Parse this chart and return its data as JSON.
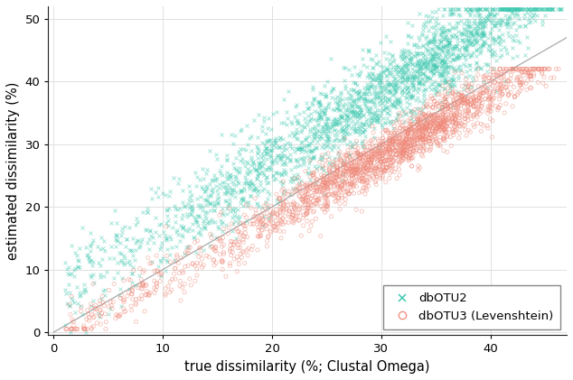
{
  "title": "",
  "xlabel": "true dissimilarity (%; Clustal Omega)",
  "ylabel": "estimated dissimilarity (%)",
  "xlim": [
    -0.5,
    47
  ],
  "ylim": [
    -0.5,
    52
  ],
  "xticks": [
    0,
    10,
    20,
    30,
    40
  ],
  "yticks": [
    0,
    10,
    20,
    30,
    40,
    50
  ],
  "dbotu2_color": "#3EC9B0",
  "dbotu3_color": "#F08878",
  "ref_line_color": "#AAAAAA",
  "grid_color": "#E0E0E0",
  "background_color": "#FFFFFF",
  "legend_labels": [
    "dbOTU2",
    "dbOTU3 (Levenshtein)"
  ],
  "seed": 123,
  "xlabel_fontsize": 10.5,
  "ylabel_fontsize": 10.5,
  "tick_fontsize": 9.5,
  "legend_fontsize": 9.5
}
